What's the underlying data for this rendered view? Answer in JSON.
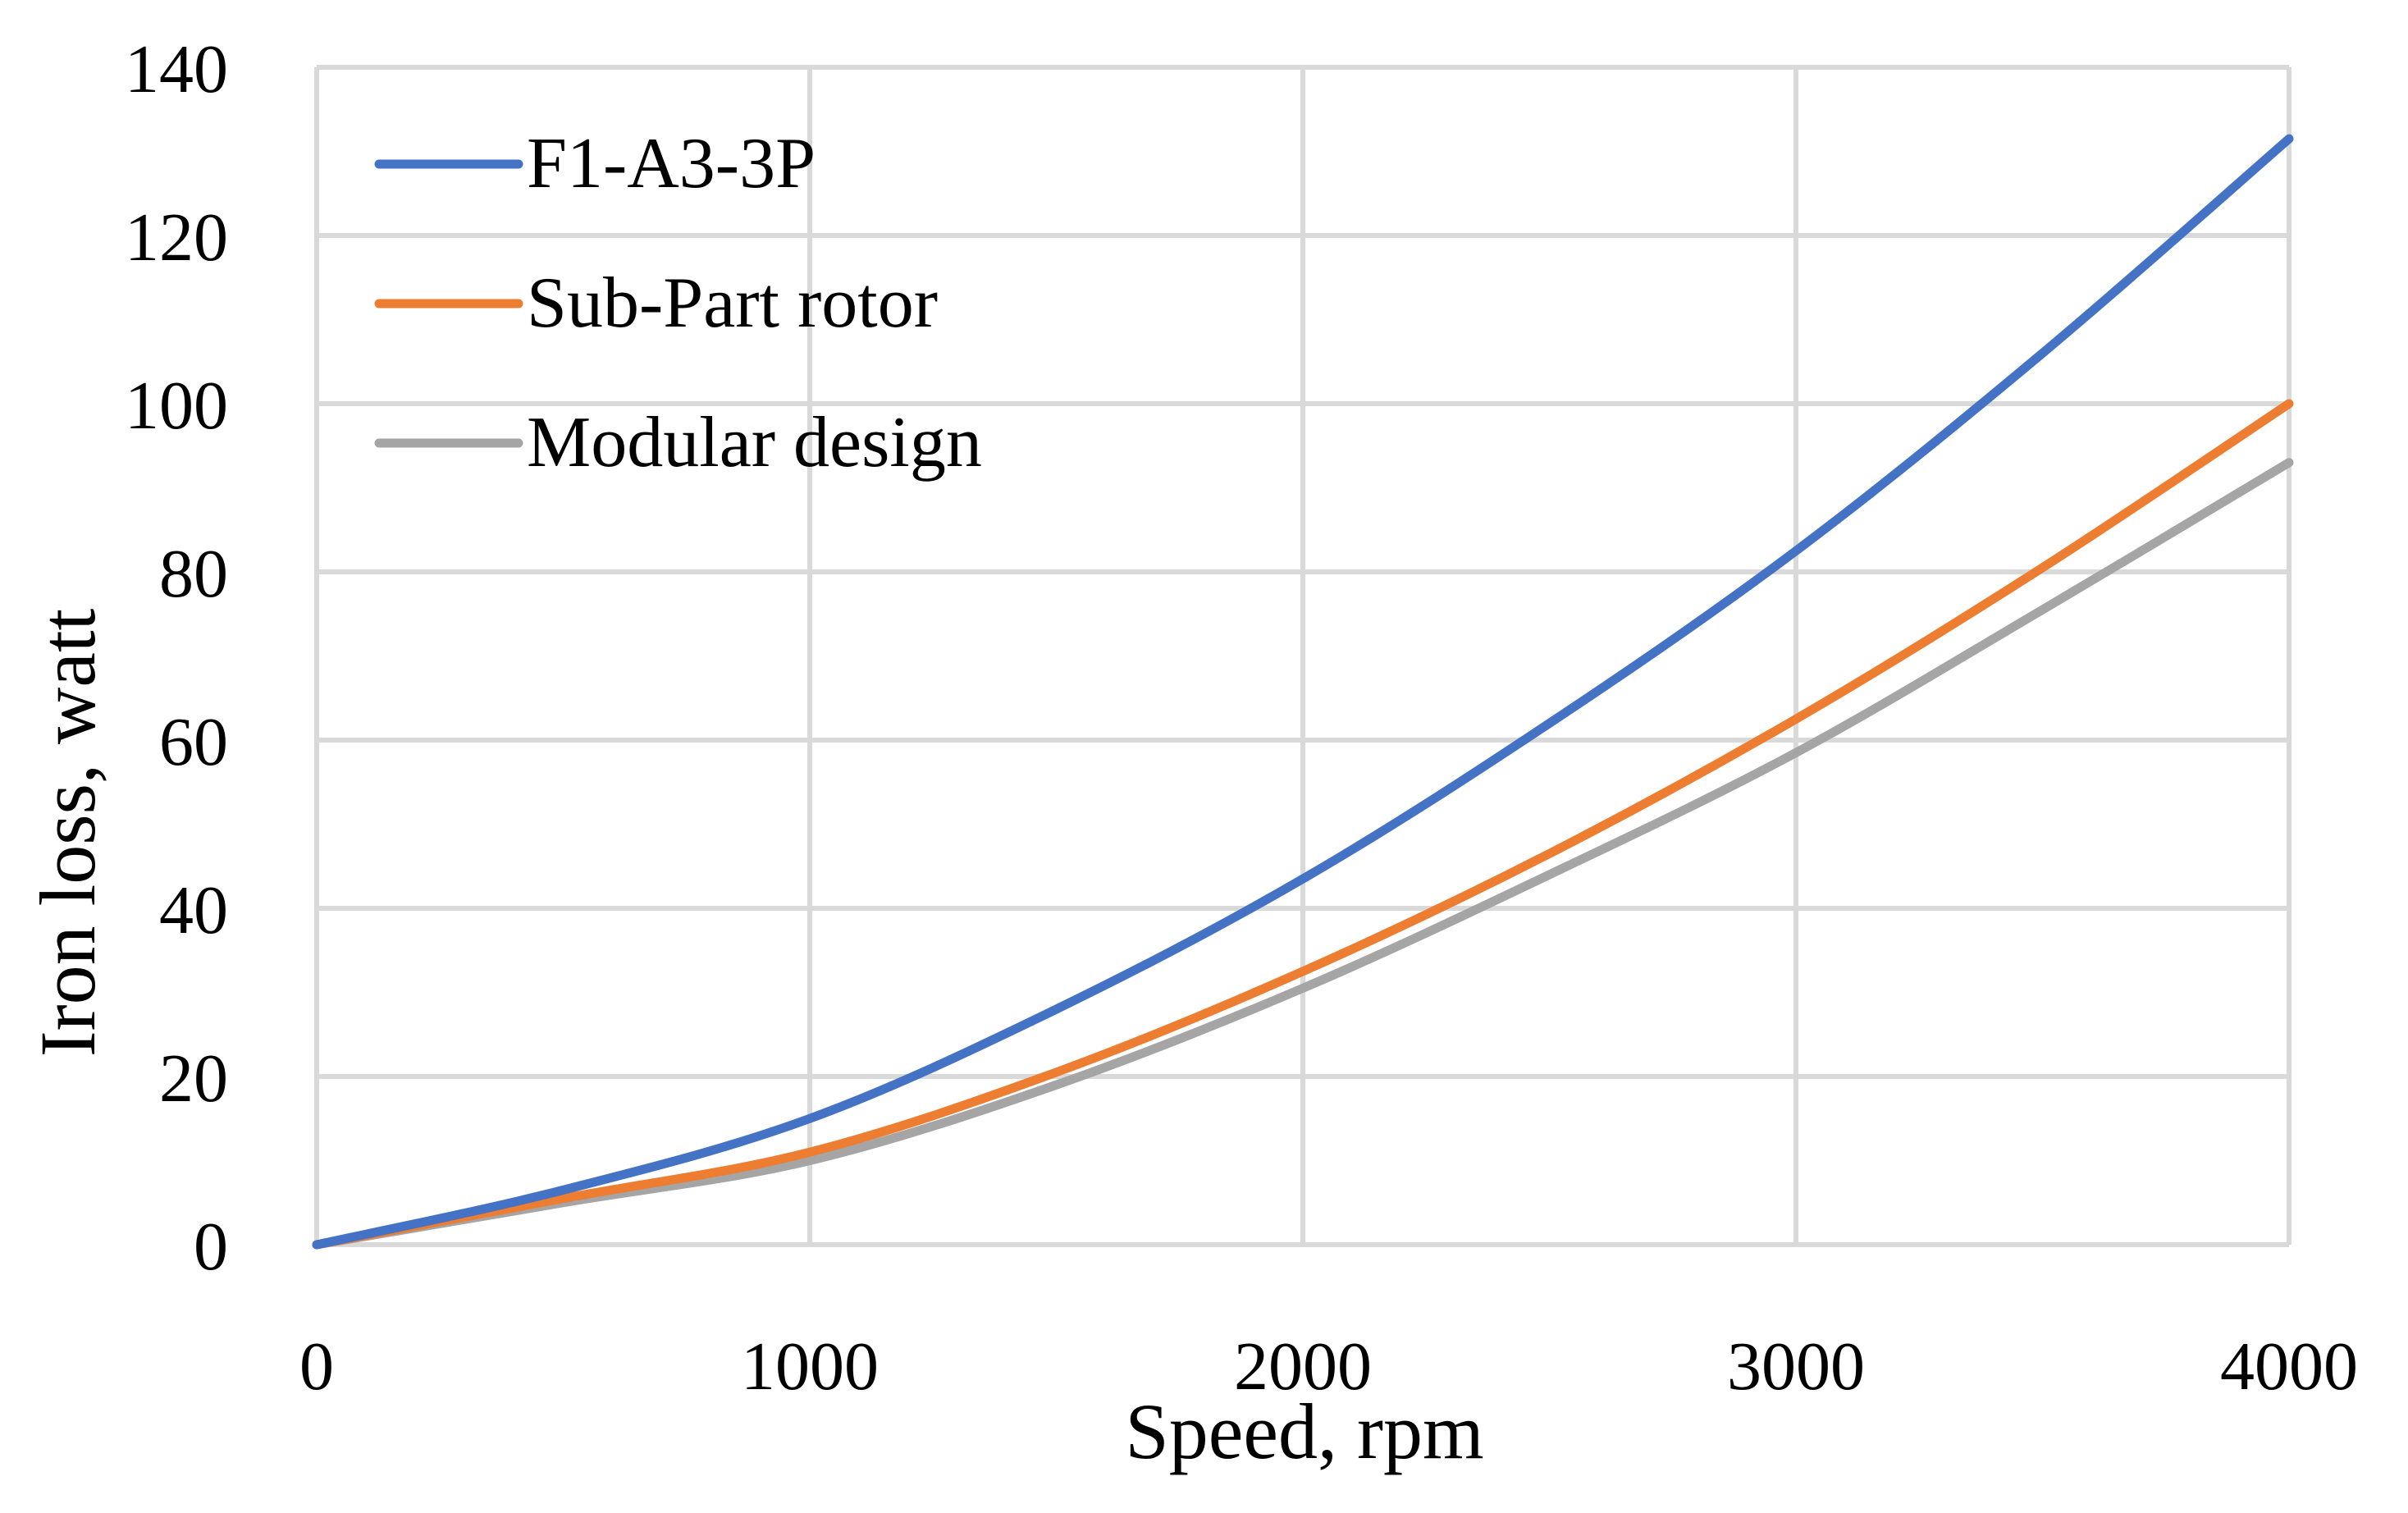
{
  "chart_data": {
    "type": "line",
    "title": "",
    "xlabel": "Speed, rpm",
    "ylabel": "Iron loss, watt",
    "xlim": [
      0,
      4000
    ],
    "ylim": [
      0,
      140
    ],
    "xticks": [
      0,
      1000,
      2000,
      3000,
      4000
    ],
    "yticks": [
      0,
      20,
      40,
      60,
      80,
      100,
      120,
      140
    ],
    "grid": true,
    "legend_position": "top-left",
    "x": [
      0,
      500,
      1000,
      1500,
      2000,
      2500,
      3000,
      3500,
      4000
    ],
    "series": [
      {
        "name": "F1-A3-3P",
        "color": "#4472c4",
        "values": [
          0,
          6.5,
          15,
          28,
          43.5,
          62,
          82.5,
          106,
          131.5
        ]
      },
      {
        "name": "Sub-Part rotor",
        "color": "#ed7d31",
        "values": [
          0,
          5.5,
          11,
          20.5,
          32.5,
          46.5,
          62.5,
          80.5,
          100
        ]
      },
      {
        "name": "Modular design",
        "color": "#a5a5a5",
        "values": [
          0,
          5,
          10,
          19,
          30.5,
          44,
          58.5,
          75.5,
          93
        ]
      }
    ]
  }
}
